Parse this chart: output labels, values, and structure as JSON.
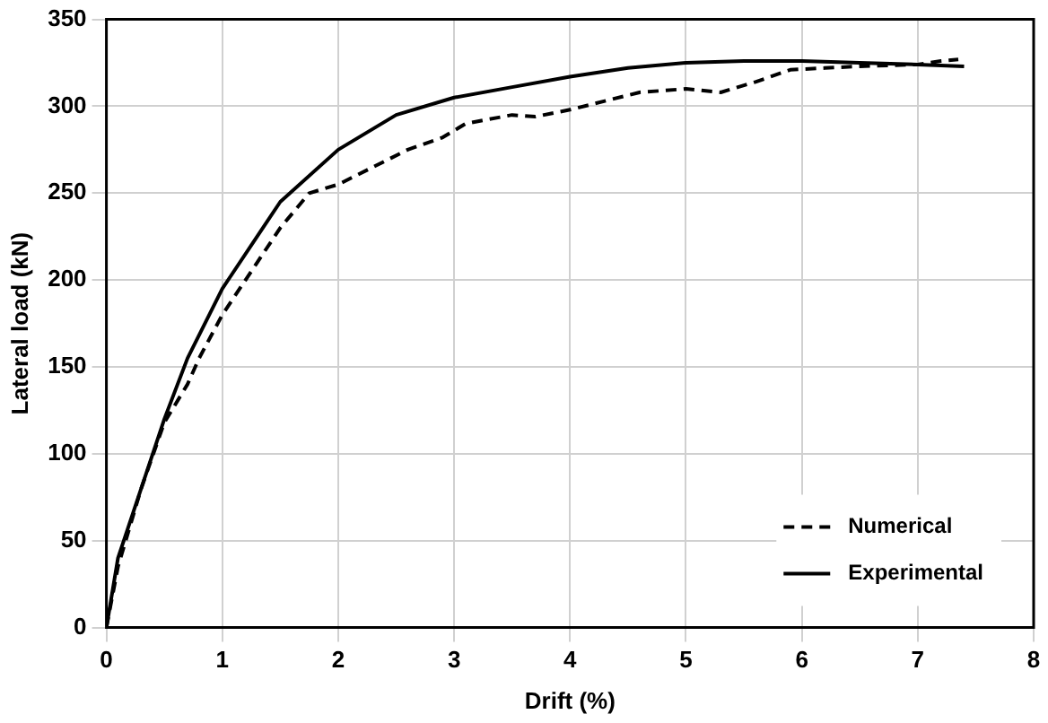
{
  "chart_data": {
    "type": "line",
    "xlabel": "Drift (%)",
    "ylabel": "Lateral load (kN)",
    "xlim": [
      0,
      8
    ],
    "xticks": [
      0,
      1,
      2,
      3,
      4,
      5,
      6,
      7,
      8
    ],
    "ylim": [
      0,
      350
    ],
    "yticks": [
      0,
      50,
      100,
      150,
      200,
      250,
      300,
      350
    ],
    "grid": true,
    "legend": "bottom right",
    "marker": "none",
    "series": [
      {
        "name": "Numerical",
        "color": "#000000",
        "line_style": "dashed",
        "x": [
          0,
          0.1,
          0.3,
          0.5,
          0.7,
          0.8,
          1,
          1.3,
          1.5,
          1.75,
          2,
          2.3,
          2.6,
          2.9,
          3.1,
          3.5,
          3.7,
          4,
          4.3,
          4.6,
          5,
          5.3,
          5.6,
          5.9,
          6.2,
          6.5,
          7,
          7.2,
          7.35
        ],
        "values": [
          0,
          35,
          80,
          118,
          140,
          155,
          180,
          210,
          230,
          250,
          255,
          265,
          275,
          282,
          290,
          295,
          294,
          298,
          303,
          308,
          310,
          308,
          314,
          321,
          322,
          323,
          324,
          326,
          327
        ]
      },
      {
        "name": "Experimental",
        "color": "#000000",
        "line_style": "solid",
        "x": [
          0,
          0.1,
          0.3,
          0.5,
          0.7,
          1,
          1.5,
          2,
          2.5,
          3,
          3.5,
          4,
          4.5,
          5,
          5.5,
          6,
          6.5,
          7,
          7.4
        ],
        "values": [
          0,
          40,
          80,
          120,
          155,
          195,
          245,
          275,
          295,
          305,
          311,
          317,
          322,
          325,
          326,
          326,
          325,
          324,
          323
        ]
      }
    ]
  }
}
